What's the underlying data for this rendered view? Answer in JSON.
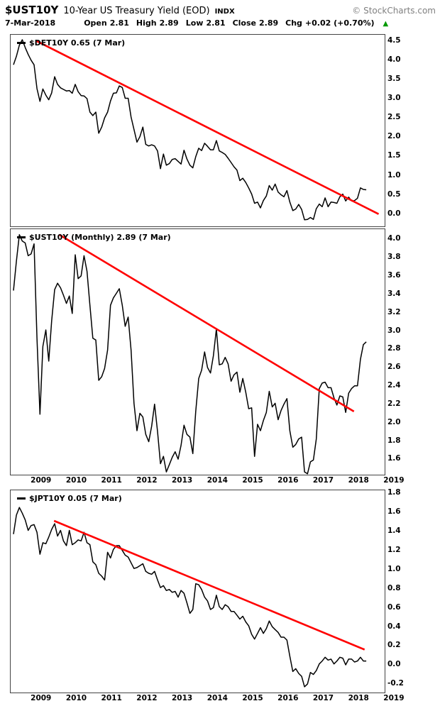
{
  "header": {
    "symbol": "$UST10Y",
    "title": "10-Year US Treasury Yield (EOD)",
    "exchange": "INDX",
    "copyright": "© StockCharts.com"
  },
  "quote": {
    "date": "7-Mar-2018",
    "fields": [
      {
        "label": "Open",
        "value": "2.81"
      },
      {
        "label": "High",
        "value": "2.89"
      },
      {
        "label": "Low",
        "value": "2.81"
      },
      {
        "label": "Close",
        "value": "2.89"
      },
      {
        "label": "Chg",
        "value": "+0.02 (+0.70%)"
      }
    ],
    "change_direction": "up",
    "change_color": "#009900"
  },
  "chart_data": {
    "type": "line",
    "title": "$UST10Y 10-Year US Treasury Yield (EOD) with $DET10Y and $JPT10Y comparison panels",
    "frequency": "monthly",
    "x_domain": [
      2008.12,
      2018.72
    ],
    "x_axis_years": [
      "2009",
      "2010",
      "2011",
      "2012",
      "2013",
      "2014",
      "2015",
      "2016",
      "2017",
      "2018",
      "2019"
    ],
    "line_color": "#000000",
    "trend_color": "#ff0000",
    "panels": [
      {
        "id": "det10y",
        "legend": "$DET10Y 0.65 (7 Mar)",
        "x_start": 2008.2,
        "y_domain": [
          -0.3,
          4.68
        ],
        "y_ticks": [
          4.5,
          4.0,
          3.5,
          3.0,
          2.5,
          2.0,
          1.5,
          1.0,
          0.5,
          0.0
        ],
        "trendline": {
          "x1": 2008.85,
          "y1": 4.52,
          "x2": 2018.55,
          "y2": 0.02
        },
        "values": [
          3.9,
          4.12,
          4.41,
          4.55,
          4.35,
          4.17,
          4.02,
          3.9,
          3.28,
          2.95,
          3.27,
          3.11,
          2.99,
          3.17,
          3.59,
          3.39,
          3.3,
          3.26,
          3.22,
          3.23,
          3.16,
          3.39,
          3.2,
          3.1,
          3.09,
          3.02,
          2.67,
          2.58,
          2.67,
          2.12,
          2.28,
          2.52,
          2.67,
          2.96,
          3.16,
          3.17,
          3.35,
          3.31,
          3.03,
          3.03,
          2.54,
          2.22,
          1.89,
          2.03,
          2.28,
          1.83,
          1.79,
          1.82,
          1.79,
          1.66,
          1.2,
          1.58,
          1.29,
          1.33,
          1.44,
          1.46,
          1.39,
          1.32,
          1.68,
          1.45,
          1.29,
          1.22,
          1.51,
          1.73,
          1.67,
          1.86,
          1.78,
          1.69,
          1.69,
          1.93,
          1.66,
          1.62,
          1.57,
          1.47,
          1.36,
          1.25,
          1.16,
          0.89,
          0.95,
          0.84,
          0.7,
          0.54,
          0.3,
          0.33,
          0.18,
          0.37,
          0.49,
          0.76,
          0.64,
          0.8,
          0.59,
          0.52,
          0.47,
          0.63,
          0.33,
          0.11,
          0.15,
          0.27,
          0.14,
          -0.13,
          -0.12,
          -0.07,
          -0.12,
          0.16,
          0.28,
          0.21,
          0.44,
          0.21,
          0.33,
          0.32,
          0.3,
          0.47,
          0.54,
          0.36,
          0.46,
          0.36,
          0.37,
          0.43,
          0.7,
          0.66,
          0.65
        ]
      },
      {
        "id": "ust10y",
        "legend": "$UST10Y (Monthly) 2.89 (7 Mar)",
        "x_start": 2008.2,
        "y_domain": [
          1.44,
          4.12
        ],
        "y_ticks": [
          4.0,
          3.8,
          3.6,
          3.4,
          3.2,
          3.0,
          2.8,
          2.6,
          2.4,
          2.2,
          2.0,
          1.8,
          1.6
        ],
        "trendline": {
          "x1": 2009.5,
          "y1": 4.06,
          "x2": 2017.85,
          "y2": 2.13
        },
        "values": [
          3.45,
          3.77,
          4.06,
          3.99,
          3.97,
          3.83,
          3.85,
          3.96,
          2.93,
          2.1,
          2.84,
          3.02,
          2.68,
          3.12,
          3.46,
          3.53,
          3.48,
          3.4,
          3.31,
          3.39,
          3.2,
          3.84,
          3.58,
          3.61,
          3.83,
          3.66,
          3.29,
          2.93,
          2.91,
          2.47,
          2.51,
          2.6,
          2.8,
          3.29,
          3.37,
          3.42,
          3.47,
          3.29,
          3.06,
          3.16,
          2.8,
          2.22,
          1.92,
          2.11,
          2.07,
          1.88,
          1.8,
          1.97,
          2.21,
          1.91,
          1.56,
          1.64,
          1.47,
          1.55,
          1.63,
          1.69,
          1.61,
          1.76,
          1.98,
          1.88,
          1.85,
          1.67,
          2.13,
          2.49,
          2.58,
          2.78,
          2.61,
          2.55,
          2.74,
          3.03,
          2.64,
          2.65,
          2.72,
          2.65,
          2.46,
          2.53,
          2.56,
          2.34,
          2.49,
          2.34,
          2.16,
          2.17,
          1.64,
          1.99,
          1.92,
          2.03,
          2.12,
          2.35,
          2.18,
          2.22,
          2.04,
          2.14,
          2.21,
          2.27,
          1.92,
          1.74,
          1.77,
          1.83,
          1.85,
          1.47,
          1.45,
          1.58,
          1.6,
          1.83,
          2.38,
          2.44,
          2.45,
          2.39,
          2.39,
          2.28,
          2.2,
          2.3,
          2.29,
          2.12,
          2.33,
          2.38,
          2.41,
          2.41,
          2.7,
          2.86,
          2.89
        ]
      },
      {
        "id": "jpt10y",
        "legend": "$JPT10Y 0.05 (7 Mar)",
        "x_start": 2008.2,
        "y_domain": [
          -0.28,
          1.84
        ],
        "y_ticks": [
          1.8,
          1.6,
          1.4,
          1.2,
          1.0,
          0.8,
          0.6,
          0.4,
          0.2,
          0.0,
          -0.2
        ],
        "trendline": {
          "x1": 2009.35,
          "y1": 1.52,
          "x2": 2018.15,
          "y2": 0.17
        },
        "values": [
          1.38,
          1.58,
          1.66,
          1.6,
          1.53,
          1.42,
          1.47,
          1.48,
          1.4,
          1.17,
          1.29,
          1.28,
          1.35,
          1.43,
          1.49,
          1.36,
          1.42,
          1.31,
          1.26,
          1.42,
          1.27,
          1.29,
          1.32,
          1.31,
          1.4,
          1.29,
          1.27,
          1.09,
          1.06,
          0.97,
          0.94,
          0.9,
          1.19,
          1.13,
          1.22,
          1.26,
          1.26,
          1.21,
          1.16,
          1.14,
          1.08,
          1.02,
          1.03,
          1.05,
          1.07,
          0.99,
          0.97,
          0.96,
          0.99,
          0.9,
          0.82,
          0.84,
          0.79,
          0.8,
          0.77,
          0.78,
          0.72,
          0.79,
          0.76,
          0.66,
          0.55,
          0.59,
          0.86,
          0.85,
          0.8,
          0.72,
          0.68,
          0.59,
          0.61,
          0.74,
          0.62,
          0.59,
          0.64,
          0.62,
          0.57,
          0.57,
          0.53,
          0.49,
          0.52,
          0.46,
          0.42,
          0.33,
          0.28,
          0.34,
          0.4,
          0.34,
          0.39,
          0.47,
          0.41,
          0.38,
          0.35,
          0.3,
          0.3,
          0.27,
          0.1,
          -0.06,
          -0.03,
          -0.08,
          -0.11,
          -0.22,
          -0.19,
          -0.07,
          -0.09,
          -0.05,
          0.02,
          0.05,
          0.09,
          0.06,
          0.07,
          0.02,
          0.05,
          0.09,
          0.08,
          0.01,
          0.07,
          0.07,
          0.04,
          0.05,
          0.09,
          0.05,
          0.05
        ]
      }
    ]
  }
}
